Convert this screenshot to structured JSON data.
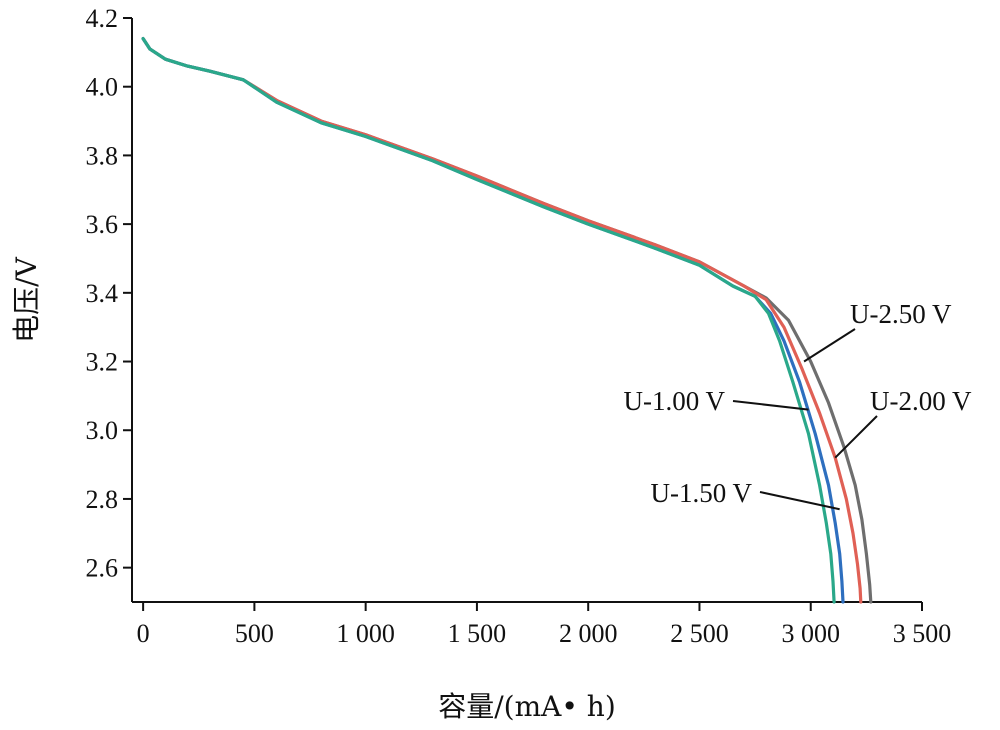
{
  "chart_data": {
    "type": "line",
    "title": "",
    "xlabel": "容量/(mA• h)",
    "ylabel": "电压/V",
    "xlim": [
      -50,
      3500
    ],
    "ylim": [
      2.5,
      4.2
    ],
    "xticks": [
      0,
      500,
      1000,
      1500,
      2000,
      2500,
      3000,
      3500
    ],
    "xtick_labels": [
      "0",
      "500",
      "1 000",
      "1 500",
      "2 000",
      "2 500",
      "3 000",
      "3 500"
    ],
    "yticks": [
      2.6,
      2.8,
      3.0,
      3.2,
      3.4,
      3.6,
      3.8,
      4.0,
      4.2
    ],
    "ytick_labels": [
      "2.6",
      "2.8",
      "3.0",
      "3.2",
      "3.4",
      "3.6",
      "3.8",
      "4.0",
      "4.2"
    ],
    "grid": false,
    "series": [
      {
        "name": "U-2.50 V",
        "color": "#6e6e6e",
        "x": [
          0,
          30,
          100,
          200,
          300,
          450,
          600,
          800,
          1000,
          1300,
          1500,
          1800,
          2000,
          2300,
          2500,
          2700,
          2800,
          2900,
          3000,
          3080,
          3150,
          3200,
          3230,
          3250,
          3265,
          3270
        ],
        "y": [
          4.14,
          4.11,
          4.08,
          4.06,
          4.045,
          4.02,
          3.96,
          3.9,
          3.86,
          3.79,
          3.74,
          3.66,
          3.61,
          3.54,
          3.49,
          3.42,
          3.385,
          3.32,
          3.2,
          3.08,
          2.95,
          2.84,
          2.74,
          2.64,
          2.55,
          2.5
        ]
      },
      {
        "name": "U-2.00 V",
        "color": "#e06055",
        "x": [
          0,
          30,
          100,
          200,
          300,
          450,
          600,
          800,
          1000,
          1300,
          1500,
          1800,
          2000,
          2300,
          2500,
          2700,
          2800,
          2880,
          2960,
          3040,
          3110,
          3160,
          3190,
          3210,
          3222,
          3225
        ],
        "y": [
          4.14,
          4.11,
          4.08,
          4.06,
          4.045,
          4.02,
          3.96,
          3.9,
          3.86,
          3.79,
          3.74,
          3.66,
          3.61,
          3.54,
          3.49,
          3.42,
          3.38,
          3.3,
          3.18,
          3.05,
          2.92,
          2.8,
          2.7,
          2.61,
          2.54,
          2.5
        ]
      },
      {
        "name": "U-1.00 V",
        "color": "#2e6fbf",
        "x": [
          0,
          30,
          100,
          200,
          300,
          450,
          600,
          800,
          1000,
          1300,
          1500,
          1800,
          2000,
          2300,
          2500,
          2650,
          2750,
          2820,
          2880,
          2950,
          3020,
          3080,
          3110,
          3130,
          3140,
          3145
        ],
        "y": [
          4.14,
          4.11,
          4.08,
          4.06,
          4.045,
          4.02,
          3.955,
          3.895,
          3.855,
          3.785,
          3.73,
          3.65,
          3.6,
          3.53,
          3.48,
          3.42,
          3.39,
          3.34,
          3.26,
          3.14,
          2.99,
          2.84,
          2.73,
          2.64,
          2.56,
          2.5
        ]
      },
      {
        "name": "U-1.50 V",
        "color": "#2aa88a",
        "x": [
          0,
          30,
          100,
          200,
          300,
          450,
          600,
          800,
          1000,
          1300,
          1500,
          1800,
          2000,
          2300,
          2500,
          2650,
          2750,
          2810,
          2860,
          2920,
          2990,
          3040,
          3070,
          3090,
          3100,
          3105
        ],
        "y": [
          4.14,
          4.11,
          4.08,
          4.06,
          4.045,
          4.02,
          3.955,
          3.895,
          3.855,
          3.785,
          3.73,
          3.65,
          3.6,
          3.53,
          3.48,
          3.42,
          3.39,
          3.34,
          3.26,
          3.14,
          2.99,
          2.84,
          2.73,
          2.64,
          2.56,
          2.5
        ]
      }
    ],
    "annotations": [
      {
        "text": "U-2.50 V",
        "series": "U-2.50 V",
        "point": [
          2970,
          3.2
        ]
      },
      {
        "text": "U-2.00 V",
        "series": "U-2.00 V",
        "point": [
          3110,
          2.92
        ]
      },
      {
        "text": "U-1.00 V",
        "series": "U-1.00 V",
        "point": [
          2990,
          3.06
        ]
      },
      {
        "text": "U-1.50 V",
        "series": "U-1.50 V",
        "point": [
          3130,
          2.77
        ]
      }
    ]
  }
}
